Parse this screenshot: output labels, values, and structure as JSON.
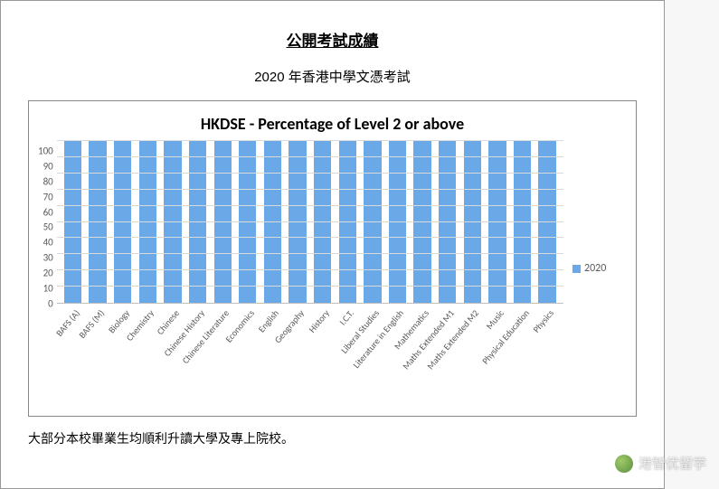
{
  "page": {
    "title": "公開考試成績",
    "subtitle": "2020 年香港中學文憑考試",
    "footnote": "大部分本校畢業生均順利升讀大學及專上院校。"
  },
  "chart": {
    "type": "bar",
    "title": "HKDSE - Percentage of Level 2 or above",
    "title_fontsize": 18,
    "label_fontsize": 11,
    "ylim": [
      0,
      100
    ],
    "ytick_step": 10,
    "background_color": "#ffffff",
    "grid_color": "#d9d9d9",
    "axis_color": "#bfbfbf",
    "bar_color": "#6aa8e8",
    "bar_width": 0.7,
    "legend": {
      "label": "2020",
      "color": "#6aa8e8",
      "position": "right"
    },
    "categories": [
      "BAFS (A)",
      "BAFS (M)",
      "Biology",
      "Chemistry",
      "Chinese",
      "Chinese History",
      "Chinese Literature",
      "Economics",
      "English",
      "Geography",
      "History",
      "I.C.T.",
      "Liberal Studies",
      "Literature in English",
      "Mathematics",
      "Maths Extended M1",
      "Maths Extended M2",
      "Music",
      "Physical Education",
      "Physics"
    ],
    "values": [
      100,
      100,
      100,
      100,
      100,
      100,
      100,
      100,
      100,
      100,
      100,
      100,
      100,
      100,
      100,
      100,
      100,
      100,
      100,
      100
    ]
  },
  "watermark": {
    "text": "港智优留学"
  }
}
